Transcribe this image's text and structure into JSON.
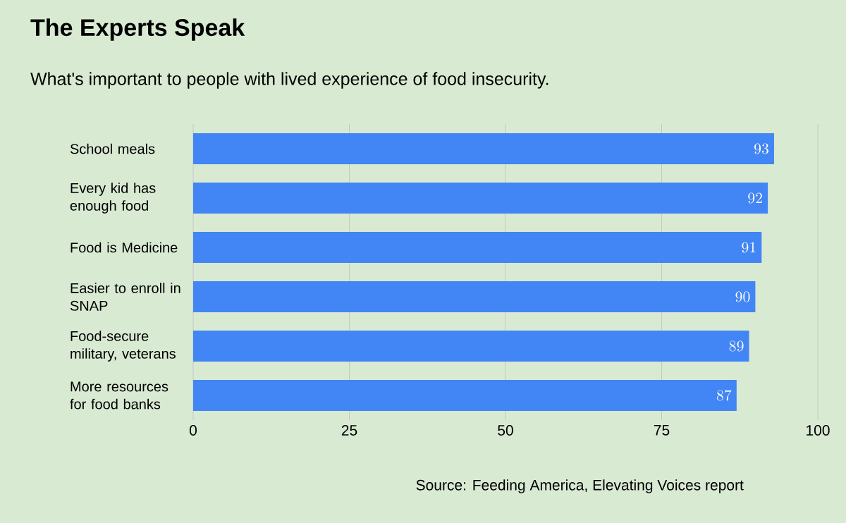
{
  "chart_data": {
    "type": "bar",
    "orientation": "horizontal",
    "title": "The Experts Speak",
    "subtitle": "What's important to people with lived experience of food insecurity.",
    "categories": [
      "School meals",
      "Every kid has enough food",
      "Food is Medicine",
      "Easier to enroll in SNAP",
      "Food-secure military, veterans",
      "More resources for food banks"
    ],
    "values": [
      93,
      92,
      91,
      90,
      89,
      87
    ],
    "color": "#4285f4",
    "xlim": [
      0,
      100
    ],
    "xticks": [
      0,
      25,
      50,
      75,
      100
    ],
    "grid": "x",
    "data_labels": true,
    "annotations": [
      "Source:  Feeding America, Elevating Voices report"
    ]
  }
}
